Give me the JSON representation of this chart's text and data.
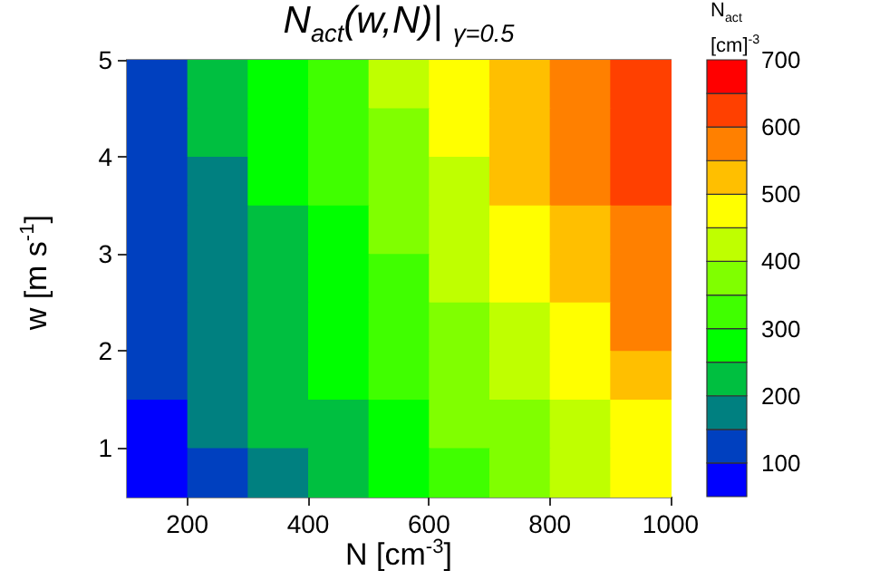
{
  "chart_data": {
    "type": "heatmap",
    "title": "N$_{act}$(w,N)| $_{γ=0.5}$",
    "xlabel": "N [cm$^{-3}$]",
    "ylabel": "w [m s$^{-1}$]",
    "clabel": "N$_{act}$ [cm]$^{-3}$",
    "x": [
      150,
      250,
      350,
      450,
      550,
      650,
      750,
      850,
      950
    ],
    "y": [
      4.75,
      4.25,
      3.75,
      3.25,
      2.75,
      2.25,
      1.75,
      1.25,
      0.75
    ],
    "cells": [
      [
        136,
        208,
        276,
        341,
        404,
        475,
        532,
        594,
        642
      ],
      [
        133,
        202,
        268,
        328,
        391,
        461,
        518,
        577,
        627
      ],
      [
        129,
        195,
        259,
        314,
        376,
        446,
        502,
        559,
        610
      ],
      [
        125,
        189,
        249,
        299,
        360,
        430,
        486,
        540,
        593
      ],
      [
        121,
        181,
        239,
        283,
        343,
        412,
        468,
        519,
        574
      ],
      [
        115,
        173,
        229,
        273,
        331,
        395,
        449,
        498,
        552
      ],
      [
        107,
        163,
        217,
        261,
        316,
        375,
        425,
        472,
        525
      ],
      [
        98,
        151,
        203,
        247,
        297,
        350,
        397,
        441,
        493
      ],
      [
        88,
        138,
        186,
        230,
        277,
        322,
        364,
        406,
        456
      ]
    ],
    "colors": [
      "#0000ff",
      "#0040bf",
      "#008080",
      "#00bf40",
      "#00ff00",
      "#40ff00",
      "#80ff00",
      "#bfff00",
      "#ffff00",
      "#ffbf00",
      "#ff8000",
      "#ff4000",
      "#ff0000"
    ],
    "xlim": [
      100,
      1000
    ],
    "xticks": [
      200,
      400,
      600,
      800,
      1000
    ],
    "ylim": [
      0.5,
      5
    ],
    "yticks": [
      1,
      2,
      3,
      4,
      5
    ],
    "clim": [
      50,
      700
    ],
    "cticks": [
      100,
      200,
      300,
      400,
      500,
      600,
      700
    ]
  }
}
